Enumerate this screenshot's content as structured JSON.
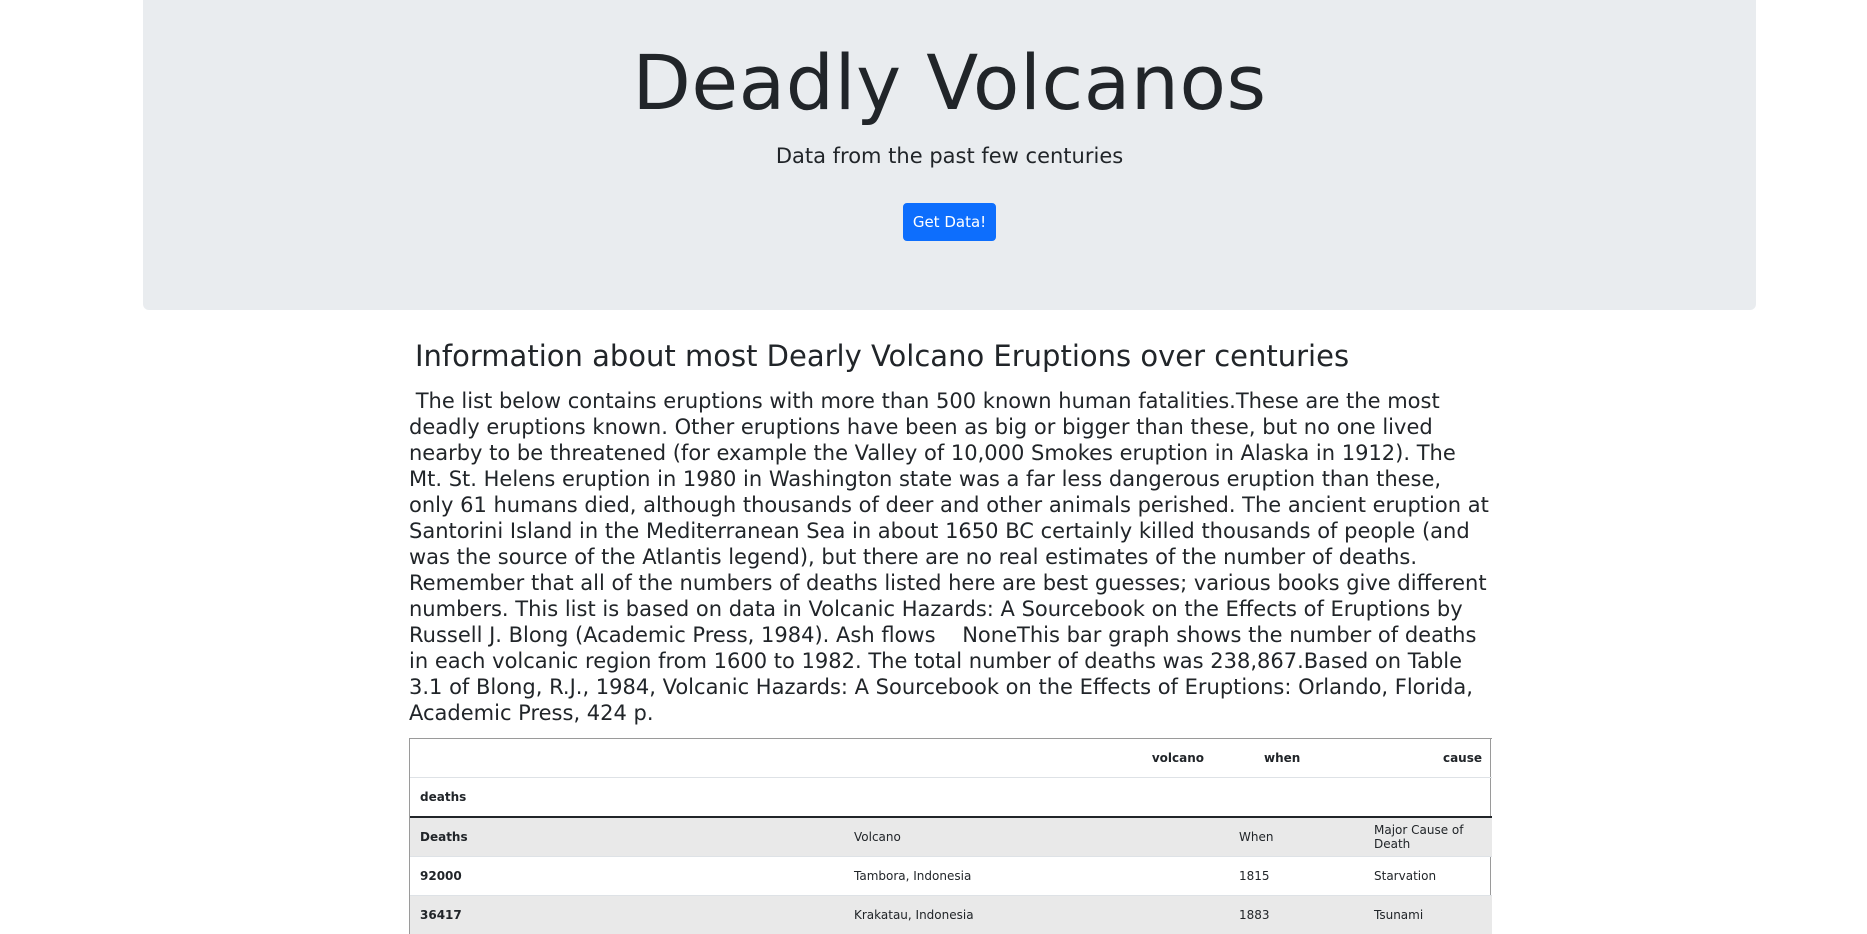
{
  "jumbotron": {
    "title": "Deadly Volcanos",
    "subtitle": "Data from the past few centuries",
    "button_label": "Get Data!"
  },
  "info": {
    "title": "Information about most Dearly Volcano Eruptions over centuries",
    "text": " The list below contains eruptions with more than 500 known human fatalities.These are the most deadly eruptions known. Other eruptions have been as big or bigger than these, but no one lived nearby to be threatened (for example the Valley of 10,000 Smokes eruption in Alaska in 1912). The Mt. St. Helens eruption in 1980 in Washington state was a far less dangerous eruption than these, only 61 humans died, although thousands of deer and other animals perished. The ancient eruption at Santorini Island in the Mediterranean Sea in about 1650 BC certainly killed thousands of people (and was the source of the Atlantis legend), but there are no real estimates of the number of deaths. Remember that all of the numbers of deaths listed here are best guesses; various books give different numbers. This list is based on data in Volcanic Hazards: A Sourcebook on the Effects of Eruptions by Russell J. Blong (Academic Press, 1984). Ash flows    NoneThis bar graph shows the number of deaths in each volcanic region from 1600 to 1982. The total number of deaths was 238,867.Based on Table 3.1 of Blong, R.J., 1984, Volcanic Hazards: A Sourcebook on the Effects of Eruptions: Orlando, Florida, Academic Press, 424 p."
  },
  "table": {
    "header": {
      "volcano": "volcano",
      "when": "when",
      "cause": "cause",
      "deaths": "deaths"
    },
    "rows": [
      {
        "deaths": "Deaths",
        "volcano": "Volcano",
        "when": "When",
        "cause": "Major Cause of Death"
      },
      {
        "deaths": "92000",
        "volcano": "Tambora, Indonesia",
        "when": "1815",
        "cause": "Starvation"
      },
      {
        "deaths": "36417",
        "volcano": "Krakatau, Indonesia",
        "when": "1883",
        "cause": "Tsunami"
      }
    ]
  }
}
